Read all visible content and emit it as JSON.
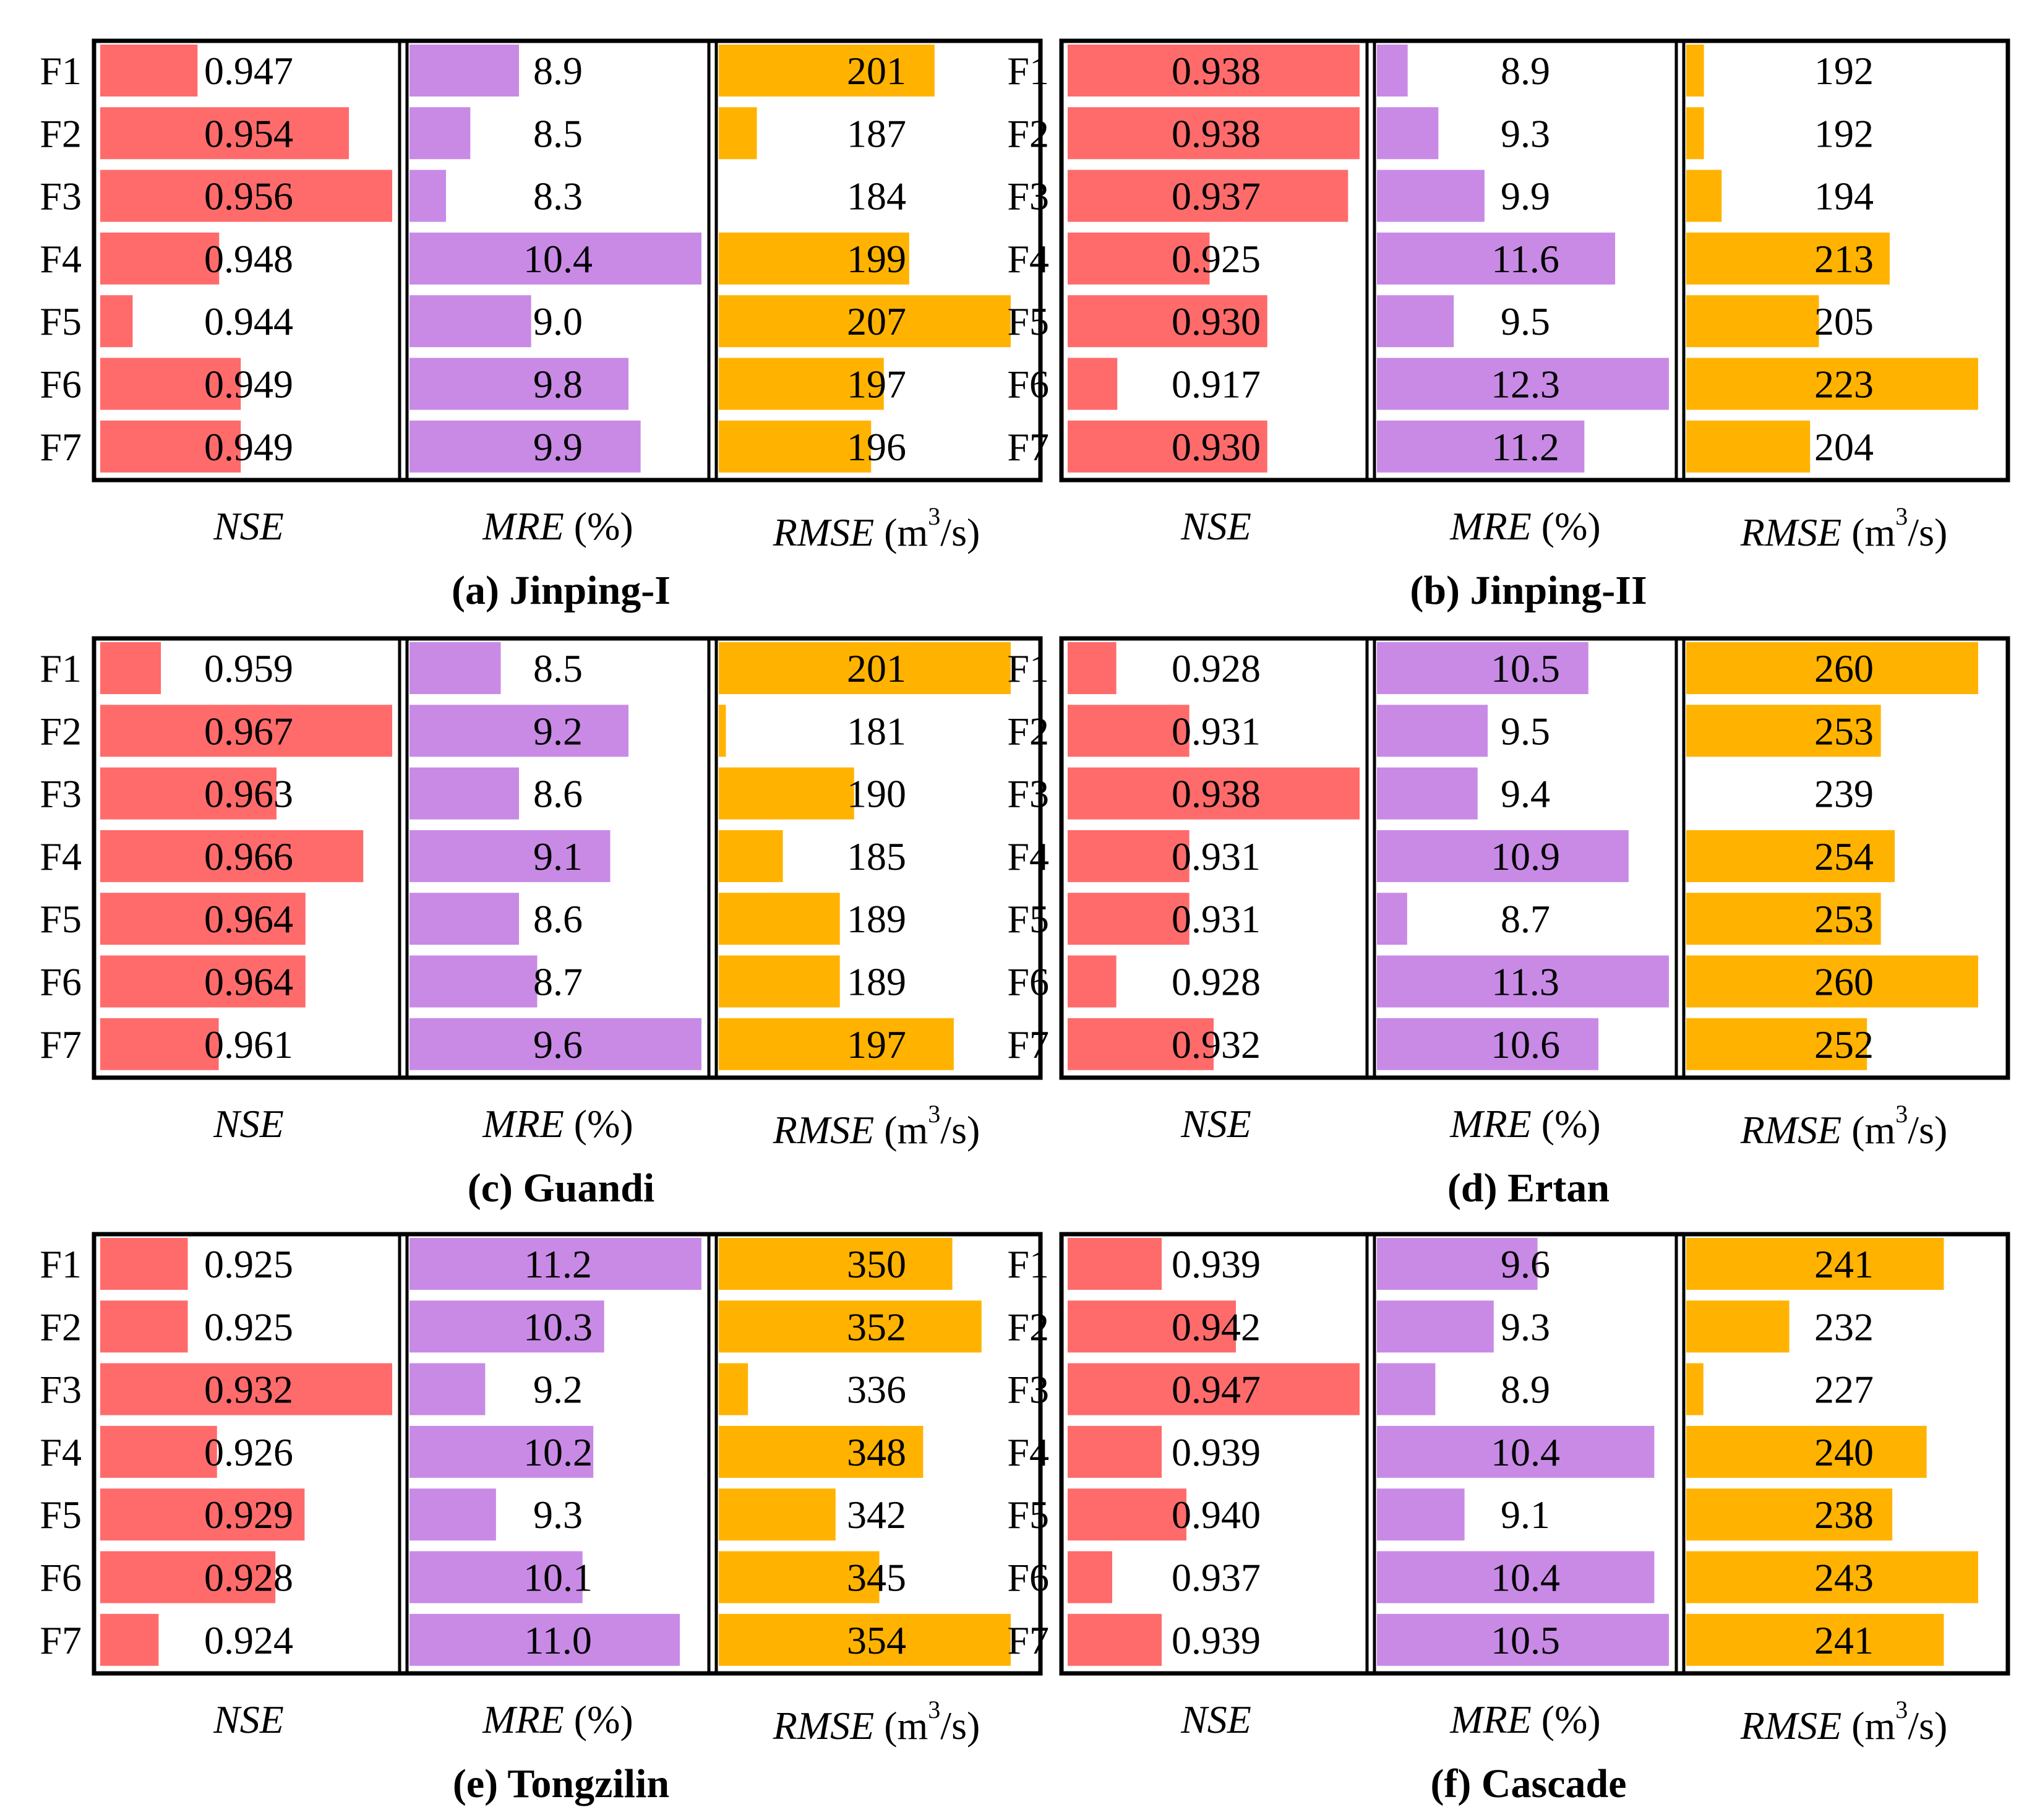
{
  "chart_data": {
    "type": "bar",
    "row_labels": [
      "F1",
      "F2",
      "F3",
      "F4",
      "F5",
      "F6",
      "F7"
    ],
    "metric_labels": {
      "nse": "NSE",
      "mre": "MRE",
      "mre_unit": "(%)",
      "rmse": "RMSE",
      "rmse_unit_open": "(m",
      "rmse_unit_sup": "3",
      "rmse_unit_close": "/s)"
    },
    "colors": {
      "nse": "#ff6b6b",
      "mre": "#c98ae6",
      "rmse": "#ffb300"
    },
    "panels": [
      {
        "caption": "(a) Jinping-I",
        "nse": {
          "values": [
            0.947,
            0.954,
            0.956,
            0.948,
            0.944,
            0.949,
            0.949
          ],
          "labels": [
            "0.947",
            "0.954",
            "0.956",
            "0.948",
            "0.944",
            "0.949",
            "0.949"
          ],
          "xlim": [
            0.9425,
            0.956
          ]
        },
        "mre": {
          "values": [
            8.9,
            8.5,
            8.3,
            10.4,
            9.0,
            9.8,
            9.9
          ],
          "labels": [
            "8.9",
            "8.5",
            "8.3",
            "10.4",
            "9.0",
            "9.8",
            "9.9"
          ],
          "xlim": [
            8.0,
            10.4
          ]
        },
        "rmse": {
          "values": [
            201,
            187,
            184,
            199,
            207,
            197,
            196
          ],
          "labels": [
            "201",
            "187",
            "184",
            "199",
            "207",
            "197",
            "196"
          ],
          "xlim": [
            184,
            207
          ]
        }
      },
      {
        "caption": "(b) Jinping-II",
        "nse": {
          "values": [
            0.938,
            0.938,
            0.937,
            0.925,
            0.93,
            0.917,
            0.93
          ],
          "labels": [
            "0.938",
            "0.938",
            "0.937",
            "0.925",
            "0.930",
            "0.917",
            "0.930"
          ],
          "xlim": [
            0.9127,
            0.938
          ]
        },
        "mre": {
          "values": [
            8.9,
            9.3,
            9.9,
            11.6,
            9.5,
            12.3,
            11.2
          ],
          "labels": [
            "8.9",
            "9.3",
            "9.9",
            "11.6",
            "9.5",
            "12.3",
            "11.2"
          ],
          "xlim": [
            8.5,
            12.3
          ]
        },
        "rmse": {
          "values": [
            192,
            192,
            194,
            213,
            205,
            223,
            204
          ],
          "labels": [
            "192",
            "192",
            "194",
            "213",
            "205",
            "223",
            "204"
          ],
          "xlim": [
            190,
            223
          ]
        }
      },
      {
        "caption": "(c) Guandi",
        "nse": {
          "values": [
            0.959,
            0.967,
            0.963,
            0.966,
            0.964,
            0.964,
            0.961
          ],
          "labels": [
            "0.959",
            "0.967",
            "0.963",
            "0.966",
            "0.964",
            "0.964",
            "0.961"
          ],
          "xlim": [
            0.9569,
            0.967
          ]
        },
        "mre": {
          "values": [
            8.5,
            9.2,
            8.6,
            9.1,
            8.6,
            8.7,
            9.6
          ],
          "labels": [
            "8.5",
            "9.2",
            "8.6",
            "9.1",
            "8.6",
            "8.7",
            "9.6"
          ],
          "xlim": [
            8.0,
            9.6
          ]
        },
        "rmse": {
          "values": [
            201,
            181,
            190,
            185,
            189,
            189,
            197
          ],
          "labels": [
            "201",
            "181",
            "190",
            "185",
            "189",
            "189",
            "197"
          ],
          "xlim": [
            180.5,
            201
          ]
        }
      },
      {
        "caption": "(d) Ertan",
        "nse": {
          "values": [
            0.928,
            0.931,
            0.938,
            0.931,
            0.931,
            0.928,
            0.932
          ],
          "labels": [
            "0.928",
            "0.931",
            "0.938",
            "0.931",
            "0.931",
            "0.928",
            "0.932"
          ],
          "xlim": [
            0.926,
            0.938
          ]
        },
        "mre": {
          "values": [
            10.5,
            9.5,
            9.4,
            10.9,
            8.7,
            11.3,
            10.6
          ],
          "labels": [
            "10.5",
            "9.5",
            "9.4",
            "10.9",
            "8.7",
            "11.3",
            "10.6"
          ],
          "xlim": [
            8.4,
            11.3
          ]
        },
        "rmse": {
          "values": [
            260,
            253,
            239,
            254,
            253,
            260,
            252
          ],
          "labels": [
            "260",
            "253",
            "239",
            "254",
            "253",
            "260",
            "252"
          ],
          "xlim": [
            239,
            260
          ]
        }
      },
      {
        "caption": "(e) Tongzilin",
        "nse": {
          "values": [
            0.925,
            0.925,
            0.932,
            0.926,
            0.929,
            0.928,
            0.924
          ],
          "labels": [
            "0.925",
            "0.925",
            "0.932",
            "0.926",
            "0.929",
            "0.928",
            "0.924"
          ],
          "xlim": [
            0.922,
            0.932
          ]
        },
        "mre": {
          "values": [
            11.2,
            10.3,
            9.2,
            10.2,
            9.3,
            10.1,
            11.0
          ],
          "labels": [
            "11.2",
            "10.3",
            "9.2",
            "10.2",
            "9.3",
            "10.1",
            "11.0"
          ],
          "xlim": [
            8.5,
            11.2
          ]
        },
        "rmse": {
          "values": [
            350,
            352,
            336,
            348,
            342,
            345,
            354
          ],
          "labels": [
            "350",
            "352",
            "336",
            "348",
            "342",
            "345",
            "354"
          ],
          "xlim": [
            334,
            354
          ]
        }
      },
      {
        "caption": "(f) Cascade",
        "nse": {
          "values": [
            0.939,
            0.942,
            0.947,
            0.939,
            0.94,
            0.937,
            0.939
          ],
          "labels": [
            "0.939",
            "0.942",
            "0.947",
            "0.939",
            "0.940",
            "0.937",
            "0.939"
          ],
          "xlim": [
            0.9352,
            0.947
          ]
        },
        "mre": {
          "values": [
            9.6,
            9.3,
            8.9,
            10.4,
            9.1,
            10.4,
            10.5
          ],
          "labels": [
            "9.6",
            "9.3",
            "8.9",
            "10.4",
            "9.1",
            "10.4",
            "10.5"
          ],
          "xlim": [
            8.5,
            10.5
          ]
        },
        "rmse": {
          "values": [
            241,
            232,
            227,
            240,
            238,
            243,
            241
          ],
          "labels": [
            "241",
            "232",
            "227",
            "240",
            "238",
            "243",
            "241"
          ],
          "xlim": [
            226,
            243
          ]
        }
      }
    ]
  }
}
